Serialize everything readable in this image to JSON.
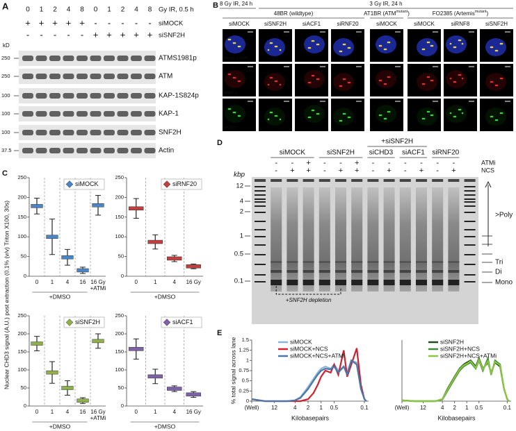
{
  "figure": {
    "panel_a": {
      "label": "A",
      "doses": [
        "0",
        "1",
        "2",
        "4",
        "8",
        "0",
        "1",
        "2",
        "4",
        "8"
      ],
      "dose_unit": "Gy IR, 0.5 h",
      "treatments": [
        {
          "name": "siMOCK",
          "signs": [
            "+",
            "+",
            "+",
            "+",
            "+",
            "-",
            "-",
            "-",
            "-",
            "-"
          ]
        },
        {
          "name": "siSNF2H",
          "signs": [
            "-",
            "-",
            "-",
            "-",
            "-",
            "+",
            "+",
            "+",
            "+",
            "+"
          ]
        }
      ],
      "kd_label": "kD",
      "blots": [
        {
          "name": "ATMS1981p",
          "marker": "250"
        },
        {
          "name": "ATM",
          "marker": "250"
        },
        {
          "name": "KAP-1S824p",
          "marker": "100"
        },
        {
          "name": "KAP-1",
          "marker": "100"
        },
        {
          "name": "SNF2H",
          "marker": "100"
        },
        {
          "name": "Actin",
          "marker": "37.5"
        }
      ]
    },
    "panel_b": {
      "label": "B",
      "conditions": [
        "8 Gy IR, 24 h",
        "3 Gy IR, 24 h"
      ],
      "cell_lines": [
        {
          "prefix": "48BR (wildtype)"
        },
        {
          "prefix": "AT1BR (ATM",
          "sup": "mutant",
          "suffix": ")"
        },
        {
          "prefix": "FO2385 (Artemis",
          "sup": "mutant",
          "suffix": ")"
        }
      ],
      "columns": [
        "siMOCK",
        "siSNF2H",
        "siACF1",
        "siRNF20",
        "siMOCK",
        "siMOCK",
        "siRNF8",
        "siSNF2H"
      ],
      "row_labels": [
        "Merge + DAPI",
        "pKAP-1",
        "γH2AX"
      ],
      "scale_bar": "5 µm"
    },
    "panel_d": {
      "label": "D",
      "unit": "kbp",
      "groups": [
        "siMOCK",
        "siSNF2H",
        "siCHD3",
        "siACF1",
        "siRNF20"
      ],
      "group_prefix": "+siSNF2H",
      "atmi_label": "ATMi",
      "ncs_label": "NCS",
      "atmi_signs": [
        "-",
        "-",
        "+",
        "-",
        "-",
        "+",
        "-",
        "-",
        "-",
        "-",
        "-",
        "-"
      ],
      "ncs_signs": [
        "-",
        "+",
        "+",
        "-",
        "+",
        "+",
        "-",
        "+",
        "-",
        "+",
        "-",
        "+"
      ],
      "ladder_labels": [
        "12",
        "4",
        "2",
        "1",
        "0.5",
        "0.1"
      ],
      "right_labels": [
        ">Poly",
        "Tri",
        "Di",
        "Mono"
      ],
      "annotation": "+SNF2H depletion"
    },
    "panel_c": {
      "label": "C",
      "ylabel": "Nuclear CHD3 signal (A.U.) post extraction (0.1% (v/v) Triton X100, 30s)"
    },
    "panel_e": {
      "label": "E"
    }
  },
  "chart_data": [
    {
      "type": "strip",
      "categories": [
        "0",
        "1",
        "4",
        "16",
        "16 Gy"
      ],
      "last_category_note": "+ATMi",
      "xlabel": "+DMSO",
      "ylim": [
        0,
        250
      ],
      "yticks": [
        0,
        50,
        100,
        150,
        200,
        250
      ],
      "series": [
        {
          "name": "siMOCK",
          "color": "#4a86c5",
          "values": [
            178,
            100,
            48,
            15,
            180
          ],
          "errors": [
            20,
            45,
            20,
            8,
            25
          ]
        }
      ]
    },
    {
      "type": "strip",
      "categories": [
        "0",
        "1",
        "4",
        "16 Gy"
      ],
      "xlabel": "+DMSO",
      "ylim": [
        0,
        250
      ],
      "yticks": [
        0,
        50,
        100,
        150,
        200,
        250
      ],
      "series": [
        {
          "name": "siRNF20",
          "color": "#c0403f",
          "values": [
            172,
            87,
            45,
            25
          ],
          "errors": [
            25,
            18,
            8,
            6
          ]
        }
      ]
    },
    {
      "type": "strip",
      "categories": [
        "0",
        "1",
        "4",
        "16",
        "16 Gy"
      ],
      "last_category_note": "+ATMi",
      "xlabel": "+DMSO",
      "ylim": [
        0,
        250
      ],
      "yticks": [
        0,
        50,
        100,
        150,
        200,
        250
      ],
      "series": [
        {
          "name": "siSNF2H",
          "color": "#8fb04a",
          "values": [
            173,
            93,
            50,
            15,
            180
          ],
          "errors": [
            20,
            30,
            20,
            8,
            20
          ]
        }
      ]
    },
    {
      "type": "strip",
      "categories": [
        "0",
        "1",
        "4",
        "16 Gy"
      ],
      "xlabel": "+DMSO",
      "ylim": [
        0,
        250
      ],
      "yticks": [
        0,
        50,
        100,
        150,
        200,
        250
      ],
      "series": [
        {
          "name": "siACF1",
          "color": "#7e62a8",
          "values": [
            158,
            82,
            48,
            32
          ],
          "errors": [
            28,
            20,
            8,
            8
          ]
        }
      ]
    },
    {
      "type": "line",
      "xscale": "log",
      "xlabel": "Kilobasepairs",
      "ylabel": "% total signal across lane",
      "x": [
        40,
        20,
        12,
        8,
        6,
        4,
        3,
        2,
        1.5,
        1.2,
        1,
        0.8,
        0.6,
        0.5,
        0.4,
        0.3,
        0.25,
        0.2,
        0.15,
        0.12,
        0.1,
        0.09
      ],
      "xlim": [
        40,
        0.08
      ],
      "xticks": [
        {
          "value": 40,
          "label": "(Well)"
        },
        12,
        4,
        2,
        1,
        0.5,
        0.1
      ],
      "ylim": [
        0,
        1.5
      ],
      "yticks": [
        0,
        0.25,
        0.5,
        0.75,
        1,
        1.25,
        1.5
      ],
      "series": [
        {
          "name": "siMOCK",
          "color": "#8fb4d9",
          "values": [
            0.05,
            0,
            0,
            0,
            0,
            0.02,
            0.1,
            0.35,
            0.55,
            0.7,
            0.8,
            0.85,
            0.8,
            0.9,
            0.75,
            0.85,
            0.7,
            1.0,
            0.95,
            0.3,
            0.05,
            0
          ]
        },
        {
          "name": "siMOCK+NCS",
          "color": "#d0202e",
          "values": [
            0.05,
            0,
            0,
            0,
            0,
            0,
            0,
            0.05,
            0.2,
            0.4,
            0.6,
            0.75,
            0.7,
            0.9,
            0.65,
            1.25,
            0.6,
            0.9,
            1.3,
            0.4,
            0.05,
            0
          ]
        },
        {
          "name": "siMOCK+NCS+ATMi",
          "color": "#4a76a8",
          "values": [
            0.05,
            0,
            0,
            0,
            0,
            0.02,
            0.08,
            0.3,
            0.5,
            0.65,
            0.75,
            0.8,
            0.78,
            0.85,
            0.7,
            0.85,
            0.65,
            1.0,
            0.9,
            0.3,
            0.05,
            0
          ]
        }
      ]
    },
    {
      "type": "line",
      "xscale": "log",
      "xlabel": "Kilobasepairs",
      "x": [
        40,
        20,
        12,
        8,
        6,
        4,
        3,
        2,
        1.5,
        1.2,
        1,
        0.8,
        0.6,
        0.5,
        0.4,
        0.3,
        0.25,
        0.2,
        0.15,
        0.12,
        0.1,
        0.09
      ],
      "xlim": [
        40,
        0.08
      ],
      "xticks": [
        {
          "value": 40,
          "label": "(Well)"
        },
        12,
        4,
        2,
        1,
        0.5,
        0.1
      ],
      "ylim": [
        0,
        1.5
      ],
      "series": [
        {
          "name": "siSNF2H",
          "color": "#1b4f1b",
          "values": [
            0.02,
            0,
            0,
            0,
            0,
            0.05,
            0.3,
            0.6,
            0.8,
            0.9,
            0.95,
            1.0,
            0.85,
            1.05,
            0.8,
            0.95,
            0.7,
            0.95,
            0.85,
            0.3,
            0.05,
            0
          ]
        },
        {
          "name": "siSNF2H+NCS",
          "color": "#3d8b37",
          "values": [
            0.02,
            0,
            0,
            0,
            0,
            0.04,
            0.25,
            0.55,
            0.75,
            0.85,
            0.9,
            0.95,
            0.8,
            1.0,
            0.75,
            1.05,
            0.65,
            1.0,
            0.9,
            0.3,
            0.05,
            0
          ]
        },
        {
          "name": "siSNF2H+NCS+ATMi",
          "color": "#8cc63f",
          "values": [
            0.02,
            0,
            0,
            0,
            0,
            0.05,
            0.28,
            0.58,
            0.78,
            0.88,
            0.92,
            0.98,
            0.82,
            1.02,
            0.78,
            0.98,
            0.68,
            0.97,
            0.88,
            0.3,
            0.05,
            0
          ]
        }
      ]
    }
  ]
}
